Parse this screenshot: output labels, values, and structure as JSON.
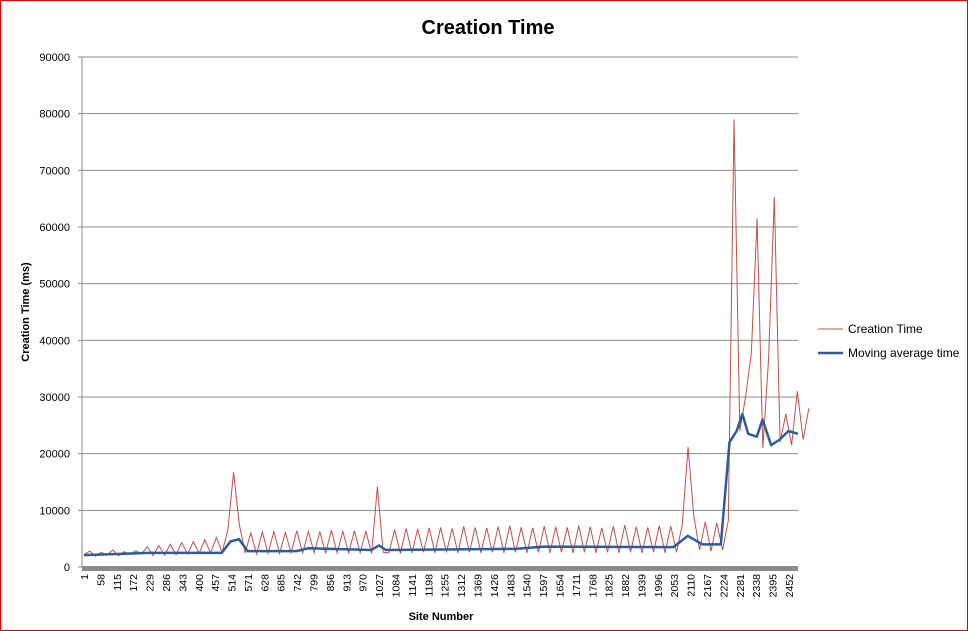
{
  "chart_data": {
    "type": "line",
    "title": "Creation Time",
    "xlabel": "Site Number",
    "ylabel": "Creation Time (ms)",
    "ylim": [
      0,
      90000
    ],
    "yticks": [
      0,
      10000,
      20000,
      30000,
      40000,
      50000,
      60000,
      70000,
      80000,
      90000
    ],
    "xlim": [
      1,
      2483
    ],
    "xticks": [
      1,
      58,
      115,
      172,
      229,
      286,
      343,
      400,
      457,
      514,
      571,
      628,
      685,
      742,
      799,
      856,
      913,
      970,
      1027,
      1084,
      1141,
      1198,
      1255,
      1312,
      1369,
      1426,
      1483,
      1540,
      1597,
      1654,
      1711,
      1768,
      1825,
      1882,
      1939,
      1996,
      2053,
      2110,
      2167,
      2224,
      2281,
      2338,
      2395,
      2452
    ],
    "grid": true,
    "legend_position": "right",
    "series": [
      {
        "name": "Creation Time",
        "color": "#c0504d",
        "x_start": 1,
        "x_step": 20,
        "values": [
          2200,
          2800,
          1900,
          2600,
          2100,
          3000,
          2000,
          2700,
          2200,
          2900,
          2300,
          3600,
          2000,
          3800,
          2100,
          4000,
          2200,
          4300,
          2300,
          4500,
          2400,
          4800,
          2500,
          5200,
          2600,
          6500,
          16700,
          7500,
          2500,
          6000,
          2300,
          6200,
          2400,
          6300,
          2400,
          6100,
          2500,
          6400,
          2400,
          6300,
          2500,
          6200,
          2400,
          6500,
          2500,
          6300,
          2400,
          6400,
          2500,
          6300,
          2400,
          14200,
          2600,
          2500,
          6600,
          2400,
          6800,
          2500,
          6700,
          2600,
          6900,
          2500,
          7000,
          2600,
          6800,
          2500,
          7200,
          2600,
          7000,
          2500,
          6900,
          2600,
          7100,
          2500,
          7300,
          2600,
          7000,
          2500,
          6900,
          2600,
          7200,
          2500,
          7100,
          2600,
          7000,
          2500,
          7300,
          2600,
          7100,
          2500,
          6900,
          2600,
          7200,
          2500,
          7400,
          2600,
          7100,
          2500,
          7000,
          2600,
          7300,
          2500,
          7200,
          2600,
          7500,
          21200,
          9000,
          3000,
          8000,
          2800,
          7800,
          3000,
          8200,
          79000,
          24000,
          30000,
          37700,
          61500,
          21000,
          36700,
          65300,
          22000,
          27000,
          21500,
          31000,
          22500,
          28000
        ]
      },
      {
        "name": "Moving average time",
        "color": "#2e5c9a",
        "x": [
          1,
          229,
          480,
          510,
          540,
          570,
          740,
          780,
          1000,
          1027,
          1050,
          1500,
          1600,
          2050,
          2100,
          2150,
          2215,
          2245,
          2270,
          2290,
          2310,
          2340,
          2360,
          2390,
          2420,
          2450,
          2483
        ],
        "values": [
          2100,
          2500,
          2500,
          4500,
          4900,
          2800,
          2800,
          3300,
          3000,
          3800,
          3000,
          3200,
          3600,
          3500,
          5500,
          4000,
          4000,
          22000,
          24000,
          27000,
          23500,
          23000,
          26000,
          21500,
          22500,
          24000,
          23500
        ]
      }
    ]
  }
}
